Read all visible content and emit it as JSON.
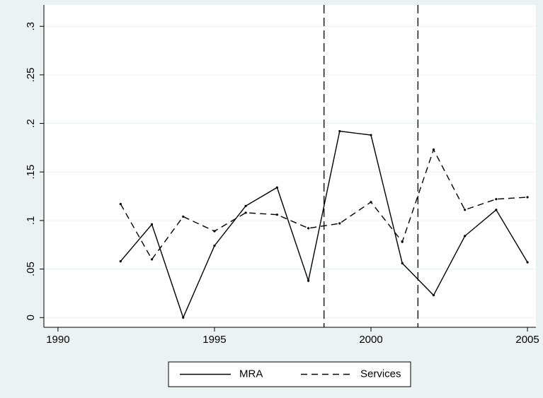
{
  "chart_data": {
    "type": "line",
    "x": [
      1992,
      1993,
      1994,
      1995,
      1996,
      1997,
      1998,
      1999,
      2000,
      2001,
      2002,
      2003,
      2004,
      2005
    ],
    "series": [
      {
        "name": "MRA",
        "color": "#000000",
        "dash": "solid",
        "values": [
          0.058,
          0.096,
          0,
          0.074,
          0.115,
          0.134,
          0.038,
          0.192,
          0.188,
          0.056,
          0.023,
          0.084,
          0.111,
          0.057
        ]
      },
      {
        "name": "Services",
        "color": "#000000",
        "dash": "dashed",
        "values": [
          0.117,
          0.06,
          0.104,
          0.089,
          0.108,
          0.106,
          0.092,
          0.097,
          0.119,
          0.078,
          0.173,
          0.111,
          0.122,
          0.124
        ]
      }
    ],
    "xlim": [
      1989.55,
      2005.27
    ],
    "xticks": [
      1990,
      1995,
      2000,
      2005
    ],
    "ylim": [
      -0.01,
      0.322
    ],
    "yticks": [
      0,
      {
        "value": 0.05,
        "label": ".05"
      },
      {
        "value": 0.1,
        "label": ".1"
      },
      {
        "value": 0.15,
        "label": ".15"
      },
      {
        "value": 0.2,
        "label": ".2"
      },
      {
        "value": 0.25,
        "label": ".25"
      },
      {
        "value": 0.3,
        "label": ".3"
      }
    ],
    "grid": true,
    "vlines": [
      1998.5,
      2001.5
    ],
    "legend": "bottom"
  }
}
